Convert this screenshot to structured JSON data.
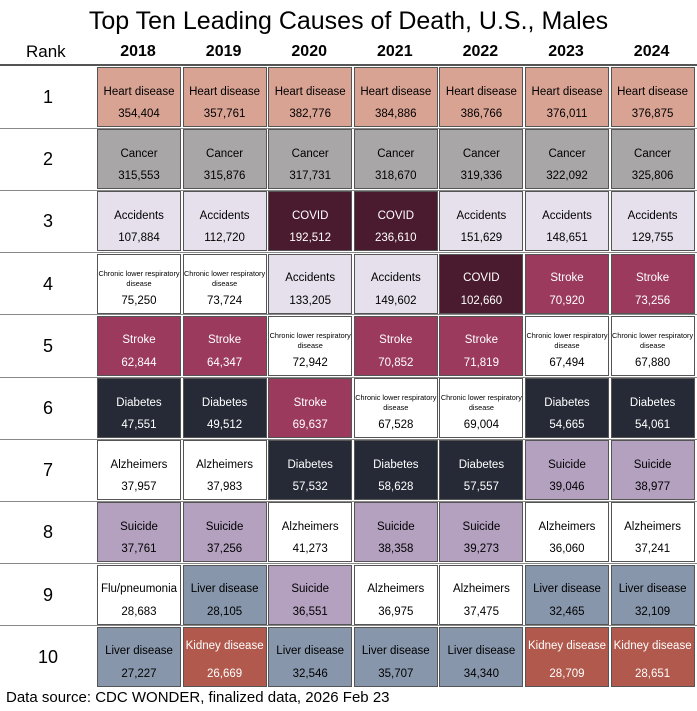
{
  "title": "Top Ten Leading Causes of Death, U.S., Males",
  "rank_header": "Rank",
  "footer": "Data source: CDC WONDER, finalized data, 2026 Feb 23",
  "chart_data": {
    "type": "table",
    "title": "Top Ten Leading Causes of Death, U.S., Males",
    "row_header": "Rank",
    "columns": [
      "2018",
      "2019",
      "2020",
      "2021",
      "2022",
      "2023",
      "2024"
    ],
    "ranks": [
      "1",
      "2",
      "3",
      "4",
      "5",
      "6",
      "7",
      "8",
      "9",
      "10"
    ],
    "cause_colors": {
      "Heart disease": "#d9a394",
      "Cancer": "#a8a6a6",
      "COVID": "#4a1a2e",
      "Accidents": "#e6e0ec",
      "Stroke": "#9c3a5e",
      "Chronic lower respiratory disease": "#ffffff",
      "Diabetes": "#252a36",
      "Alzheimers": "#ffffff",
      "Suicide": "#b4a1c0",
      "Liver disease": "#8796ab",
      "Kidney disease": "#b0594c",
      "Flu/pneumonia": "#ffffff"
    },
    "light_text_causes": [
      "COVID",
      "Stroke",
      "Diabetes",
      "Kidney disease"
    ],
    "cells": [
      [
        [
          "Heart disease",
          "354,404"
        ],
        [
          "Heart disease",
          "357,761"
        ],
        [
          "Heart disease",
          "382,776"
        ],
        [
          "Heart disease",
          "384,886"
        ],
        [
          "Heart disease",
          "386,766"
        ],
        [
          "Heart disease",
          "376,011"
        ],
        [
          "Heart disease",
          "376,875"
        ]
      ],
      [
        [
          "Cancer",
          "315,553"
        ],
        [
          "Cancer",
          "315,876"
        ],
        [
          "Cancer",
          "317,731"
        ],
        [
          "Cancer",
          "318,670"
        ],
        [
          "Cancer",
          "319,336"
        ],
        [
          "Cancer",
          "322,092"
        ],
        [
          "Cancer",
          "325,806"
        ]
      ],
      [
        [
          "Accidents",
          "107,884"
        ],
        [
          "Accidents",
          "112,720"
        ],
        [
          "COVID",
          "192,512"
        ],
        [
          "COVID",
          "236,610"
        ],
        [
          "Accidents",
          "151,629"
        ],
        [
          "Accidents",
          "148,651"
        ],
        [
          "Accidents",
          "129,755"
        ]
      ],
      [
        [
          "Chronic lower respiratory disease",
          "75,250"
        ],
        [
          "Chronic lower respiratory disease",
          "73,724"
        ],
        [
          "Accidents",
          "133,205"
        ],
        [
          "Accidents",
          "149,602"
        ],
        [
          "COVID",
          "102,660"
        ],
        [
          "Stroke",
          "70,920"
        ],
        [
          "Stroke",
          "73,256"
        ]
      ],
      [
        [
          "Stroke",
          "62,844"
        ],
        [
          "Stroke",
          "64,347"
        ],
        [
          "Chronic lower respiratory disease",
          "72,942"
        ],
        [
          "Stroke",
          "70,852"
        ],
        [
          "Stroke",
          "71,819"
        ],
        [
          "Chronic lower respiratory disease",
          "67,494"
        ],
        [
          "Chronic lower respiratory disease",
          "67,880"
        ]
      ],
      [
        [
          "Diabetes",
          "47,551"
        ],
        [
          "Diabetes",
          "49,512"
        ],
        [
          "Stroke",
          "69,637"
        ],
        [
          "Chronic lower respiratory disease",
          "67,528"
        ],
        [
          "Chronic lower respiratory disease",
          "69,004"
        ],
        [
          "Diabetes",
          "54,665"
        ],
        [
          "Diabetes",
          "54,061"
        ]
      ],
      [
        [
          "Alzheimers",
          "37,957"
        ],
        [
          "Alzheimers",
          "37,983"
        ],
        [
          "Diabetes",
          "57,532"
        ],
        [
          "Diabetes",
          "58,628"
        ],
        [
          "Diabetes",
          "57,557"
        ],
        [
          "Suicide",
          "39,046"
        ],
        [
          "Suicide",
          "38,977"
        ]
      ],
      [
        [
          "Suicide",
          "37,761"
        ],
        [
          "Suicide",
          "37,256"
        ],
        [
          "Alzheimers",
          "41,273"
        ],
        [
          "Suicide",
          "38,358"
        ],
        [
          "Suicide",
          "39,273"
        ],
        [
          "Alzheimers",
          "36,060"
        ],
        [
          "Alzheimers",
          "37,241"
        ]
      ],
      [
        [
          "Flu/pneumonia",
          "28,683"
        ],
        [
          "Liver disease",
          "28,105"
        ],
        [
          "Suicide",
          "36,551"
        ],
        [
          "Alzheimers",
          "36,975"
        ],
        [
          "Alzheimers",
          "37,475"
        ],
        [
          "Liver disease",
          "32,465"
        ],
        [
          "Liver disease",
          "32,109"
        ]
      ],
      [
        [
          "Liver disease",
          "27,227"
        ],
        [
          "Kidney disease",
          "26,669"
        ],
        [
          "Liver disease",
          "32,546"
        ],
        [
          "Liver disease",
          "35,707"
        ],
        [
          "Liver disease",
          "34,340"
        ],
        [
          "Kidney disease",
          "28,709"
        ],
        [
          "Kidney disease",
          "28,651"
        ]
      ]
    ]
  }
}
